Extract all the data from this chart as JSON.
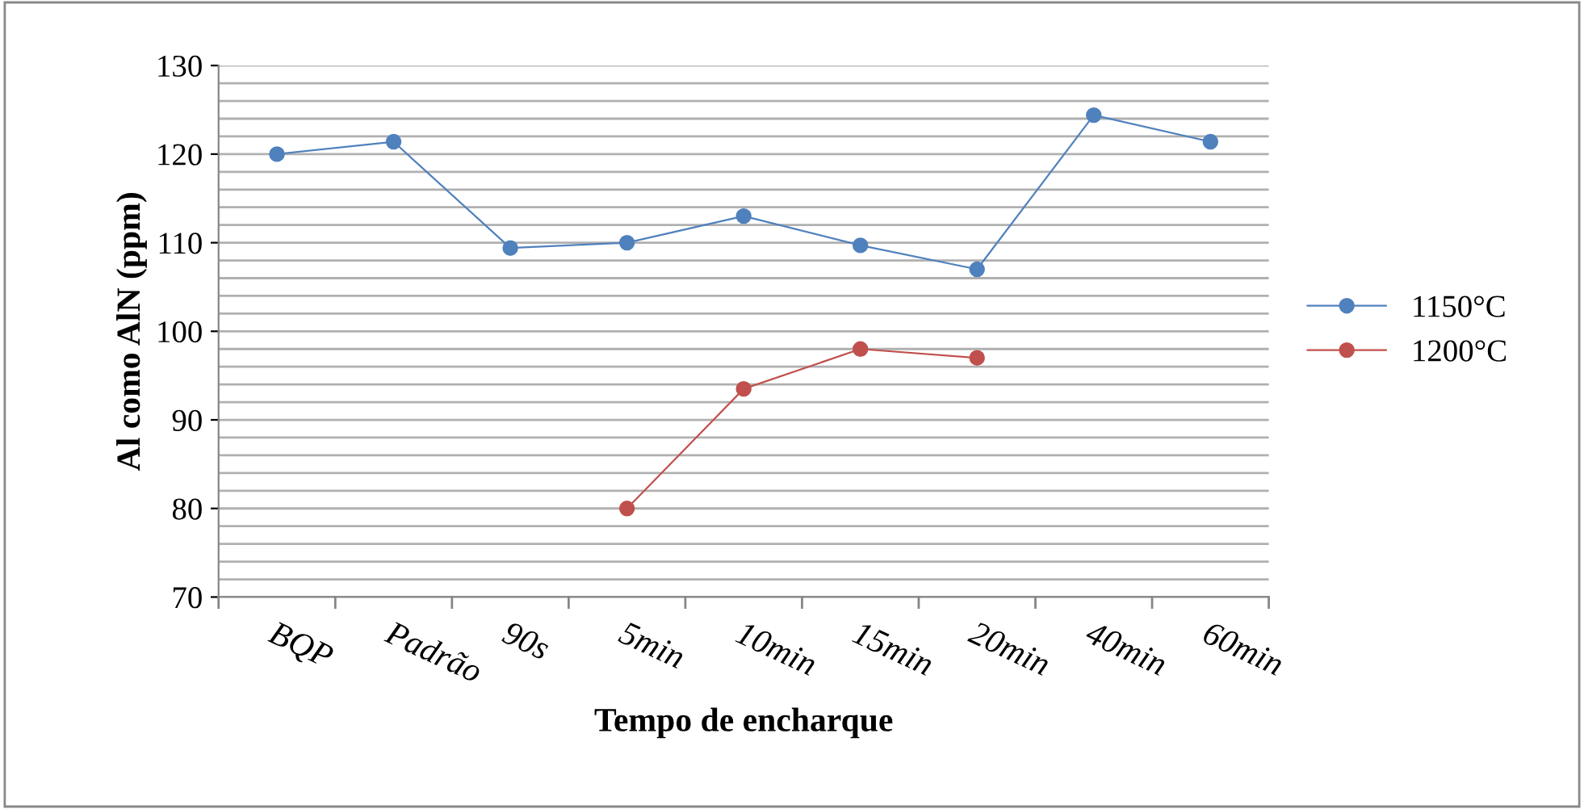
{
  "chart_data": {
    "type": "line",
    "xlabel": "Tempo de encharque",
    "ylabel": "Al como AlN (ppm)",
    "categories": [
      "BQP",
      "Padrão",
      "90s",
      "5min",
      "10min",
      "15min",
      "20min",
      "40min",
      "60min"
    ],
    "series": [
      {
        "name": "1150°C",
        "color": "#4f81bd",
        "values": [
          120,
          121.4,
          109.4,
          110,
          113,
          109.7,
          107,
          124.4,
          121.4
        ]
      },
      {
        "name": "1200°C",
        "color": "#c0504d",
        "values": [
          null,
          null,
          null,
          80,
          93.5,
          98,
          97,
          null,
          null
        ]
      }
    ],
    "ylim": [
      70,
      130
    ],
    "yticks": [
      70,
      {
        "value": 72,
        "label": null
      },
      {
        "value": 74,
        "label": null
      },
      {
        "value": 76,
        "label": null
      },
      {
        "value": 78,
        "label": null
      },
      80,
      {
        "value": 82,
        "label": null
      },
      {
        "value": 84,
        "label": null
      },
      {
        "value": 86,
        "label": null
      },
      {
        "value": 88,
        "label": null
      },
      90,
      {
        "value": 92,
        "label": null
      },
      {
        "value": 94,
        "label": null
      },
      {
        "value": 96,
        "label": null
      },
      {
        "value": 98,
        "label": null
      },
      100,
      {
        "value": 102,
        "label": null
      },
      {
        "value": 104,
        "label": null
      },
      {
        "value": 106,
        "label": null
      },
      {
        "value": 108,
        "label": null
      },
      110,
      {
        "value": 112,
        "label": null
      },
      {
        "value": 114,
        "label": null
      },
      {
        "value": 116,
        "label": null
      },
      {
        "value": 118,
        "label": null
      },
      120,
      {
        "value": 122,
        "label": null
      },
      {
        "value": 124,
        "label": null
      },
      {
        "value": 126,
        "label": null
      },
      {
        "value": 128,
        "label": null
      },
      130
    ],
    "grid": "y",
    "legend": "right",
    "marker": "circle",
    "line_style": "solid"
  }
}
